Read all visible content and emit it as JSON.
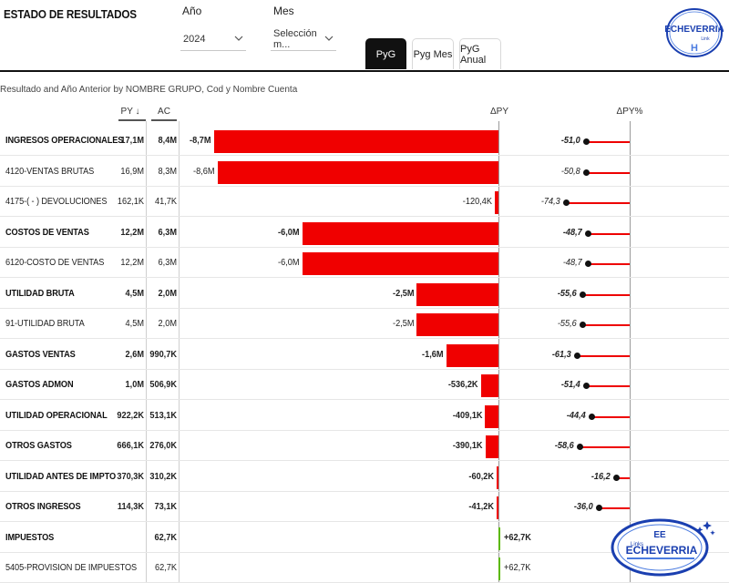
{
  "header": {
    "title": "ESTADO DE RESULTADOS",
    "filters": [
      {
        "label": "Año",
        "value": "2024"
      },
      {
        "label": "Mes",
        "value": "Selección m..."
      }
    ],
    "tabs": [
      {
        "label": "PyG",
        "active": true
      },
      {
        "label": "Pyg Mes",
        "active": false
      },
      {
        "label": "PyG Anual",
        "active": false
      }
    ]
  },
  "logo": {
    "top_text": "ECHEVERRIA",
    "top_sub": "Link",
    "top_letter": "H",
    "bottom_text": "ECHEVERRIA",
    "bottom_mark": "EE",
    "bottom_small": "Links"
  },
  "visual": {
    "title": "Resultado and Año Anterior by NOMBRE GRUPO, Cod y Nombre Cuenta",
    "columns": {
      "py": "PY ↓",
      "ac": "AC",
      "delta": "ΔPY",
      "delta_pct": "ΔPY%"
    }
  },
  "colors": {
    "negative": "#f00000",
    "positive": "#5bb800",
    "lollipop": "#ee0000",
    "dot": "#111111"
  },
  "rows": [
    {
      "name": "INGRESOS OPERACIONALES",
      "bold": true,
      "py": "17,1M",
      "ac": "8,4M",
      "delta_label": "-8,7M",
      "delta": -8700000,
      "pct_label": "-51,0",
      "pct": -51.0
    },
    {
      "name": "4120-VENTAS BRUTAS",
      "bold": false,
      "py": "16,9M",
      "ac": "8,3M",
      "delta_label": "-8,6M",
      "delta": -8600000,
      "pct_label": "-50,8",
      "pct": -50.8
    },
    {
      "name": "4175-( - ) DEVOLUCIONES",
      "bold": false,
      "py": "162,1K",
      "ac": "41,7K",
      "delta_label": "-120,4K",
      "delta": -120400,
      "pct_label": "-74,3",
      "pct": -74.3
    },
    {
      "name": "COSTOS DE VENTAS",
      "bold": true,
      "py": "12,2M",
      "ac": "6,3M",
      "delta_label": "-6,0M",
      "delta": -6000000,
      "pct_label": "-48,7",
      "pct": -48.7
    },
    {
      "name": "6120-COSTO DE VENTAS",
      "bold": false,
      "py": "12,2M",
      "ac": "6,3M",
      "delta_label": "-6,0M",
      "delta": -6000000,
      "pct_label": "-48,7",
      "pct": -48.7
    },
    {
      "name": "UTILIDAD BRUTA",
      "bold": true,
      "py": "4,5M",
      "ac": "2,0M",
      "delta_label": "-2,5M",
      "delta": -2500000,
      "pct_label": "-55,6",
      "pct": -55.6
    },
    {
      "name": "91-UTILIDAD BRUTA",
      "bold": false,
      "py": "4,5M",
      "ac": "2,0M",
      "delta_label": "-2,5M",
      "delta": -2500000,
      "pct_label": "-55,6",
      "pct": -55.6
    },
    {
      "name": "GASTOS VENTAS",
      "bold": true,
      "py": "2,6M",
      "ac": "990,7K",
      "delta_label": "-1,6M",
      "delta": -1600000,
      "pct_label": "-61,3",
      "pct": -61.3
    },
    {
      "name": "GASTOS ADMON",
      "bold": true,
      "py": "1,0M",
      "ac": "506,9K",
      "delta_label": "-536,2K",
      "delta": -536200,
      "pct_label": "-51,4",
      "pct": -51.4
    },
    {
      "name": "UTILIDAD OPERACIONAL",
      "bold": true,
      "py": "922,2K",
      "ac": "513,1K",
      "delta_label": "-409,1K",
      "delta": -409100,
      "pct_label": "-44,4",
      "pct": -44.4
    },
    {
      "name": "OTROS GASTOS",
      "bold": true,
      "py": "666,1K",
      "ac": "276,0K",
      "delta_label": "-390,1K",
      "delta": -390100,
      "pct_label": "-58,6",
      "pct": -58.6
    },
    {
      "name": "UTILIDAD ANTES DE IMPTO",
      "bold": true,
      "py": "370,3K",
      "ac": "310,2K",
      "delta_label": "-60,2K",
      "delta": -60200,
      "pct_label": "-16,2",
      "pct": -16.2
    },
    {
      "name": "OTROS INGRESOS",
      "bold": true,
      "py": "114,3K",
      "ac": "73,1K",
      "delta_label": "-41,2K",
      "delta": -41200,
      "pct_label": "-36,0",
      "pct": -36.0
    },
    {
      "name": "IMPUESTOS",
      "bold": true,
      "py": "",
      "ac": "62,7K",
      "delta_label": "+62,7K",
      "delta": 62700,
      "pct_label": "",
      "pct": null
    },
    {
      "name": "5405-PROVISION DE IMPUESTOS",
      "bold": false,
      "py": "",
      "ac": "62,7K",
      "delta_label": "+62,7K",
      "delta": 62700,
      "pct_label": "",
      "pct": null
    }
  ]
}
